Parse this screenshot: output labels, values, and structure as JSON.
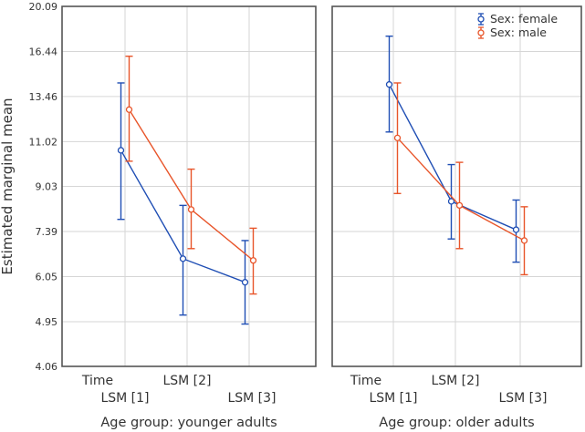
{
  "chart_data": {
    "type": "line",
    "ylabel": "Estimated marginal mean",
    "ylim": [
      4.06,
      20.09
    ],
    "yscale": "log",
    "yticks": [
      "20.09",
      "16.44",
      "13.46",
      "11.02",
      "9.03",
      "7.39",
      "6.05",
      "4.95",
      "4.06"
    ],
    "x_categories": [
      "Time LSM [1]",
      "LSM [2]",
      "LSM [3]"
    ],
    "x_tick_lines": [
      [
        "Time",
        "LSM [1]"
      ],
      [
        "LSM [2]"
      ],
      [
        "LSM [3]"
      ]
    ],
    "legend": [
      {
        "name": "Sex: female",
        "color": "#1f4eb4"
      },
      {
        "name": "Sex: male",
        "color": "#e8552a"
      }
    ],
    "panels": [
      {
        "title": "Age group: younger adults",
        "series": [
          {
            "name": "Sex: female",
            "color": "#1f4eb4",
            "values": [
              10.6,
              6.55,
              5.9
            ],
            "lower": [
              7.8,
              5.1,
              4.9
            ],
            "upper": [
              14.3,
              8.3,
              7.1
            ]
          },
          {
            "name": "Sex: male",
            "color": "#e8552a",
            "values": [
              12.7,
              8.15,
              6.5
            ],
            "lower": [
              10.1,
              6.85,
              5.6
            ],
            "upper": [
              16.1,
              9.75,
              7.5
            ]
          }
        ]
      },
      {
        "title": "Age group: older adults",
        "series": [
          {
            "name": "Sex: female",
            "color": "#1f4eb4",
            "values": [
              14.2,
              8.45,
              7.45
            ],
            "lower": [
              11.5,
              7.15,
              6.45
            ],
            "upper": [
              17.6,
              9.95,
              8.5
            ]
          },
          {
            "name": "Sex: male",
            "color": "#e8552a",
            "values": [
              11.2,
              8.3,
              7.1
            ],
            "lower": [
              8.75,
              6.85,
              6.1
            ],
            "upper": [
              14.3,
              10.05,
              8.25
            ]
          }
        ]
      }
    ]
  }
}
